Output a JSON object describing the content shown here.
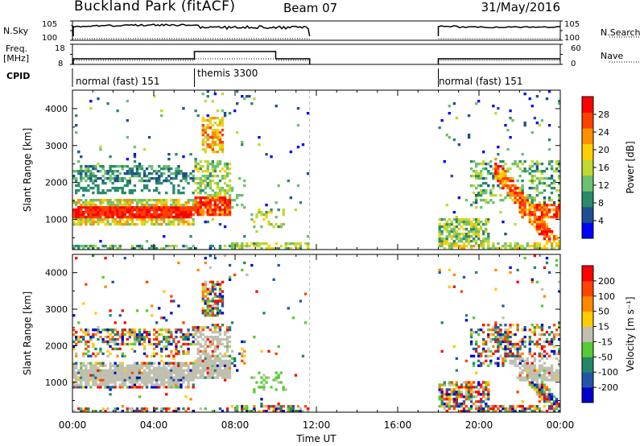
{
  "header": {
    "title": "Buckland Park (fitACF)",
    "beam": "Beam 07",
    "date": "31/May/2016"
  },
  "top_panels": {
    "nsky_label": "N.Sky",
    "nsearch_label": "N.Search",
    "freq_label_1": "Freq.",
    "freq_label_2": "[MHz]",
    "nave_label": "Nave",
    "cpid_label": "CPID",
    "left_ticks_noise": [
      "10^5",
      "10^0"
    ],
    "right_ticks_noise": [
      "10^5",
      "10^0"
    ],
    "left_ticks_freq": [
      "18",
      "8"
    ],
    "right_ticks_nave": [
      "60",
      "0"
    ],
    "modes": [
      "normal (fast) 151",
      "themis 3300",
      "normal (fast) 151"
    ]
  },
  "colors": {
    "power_scale": [
      "#0000ff",
      "#1f4f8f",
      "#2a8a6a",
      "#6cc070",
      "#c0d830",
      "#ffd000",
      "#ff9000",
      "#ff4000",
      "#ff0000"
    ],
    "velocity_scale": [
      "#0000cc",
      "#2255aa",
      "#228866",
      "#55cc33",
      "#c0c0b0",
      "#ffcc00",
      "#ff8800",
      "#ff4400",
      "#ff0000"
    ]
  },
  "chart_data": [
    {
      "type": "heatmap",
      "name": "power",
      "ylabel": "Slant Range [km]",
      "colorbar_label": "Power [dB]",
      "colorbar_ticks": [
        "28",
        "24",
        "20",
        "16",
        "12",
        "8",
        "4"
      ],
      "yticks": [
        "1000",
        "2000",
        "3000",
        "4000"
      ],
      "ylim": [
        180,
        4500
      ],
      "xlim": [
        0,
        24
      ],
      "data_gaps_ut_hours": [
        [
          11.67,
          18.0
        ]
      ],
      "features": [
        {
          "range_km": 1150,
          "ut_from": 0,
          "ut_to": 6,
          "level_db": 26
        },
        {
          "range_km": 2250,
          "ut_from": 0,
          "ut_to": 6,
          "level_db": 10
        },
        {
          "range_km": 1300,
          "ut_from": 6,
          "ut_to": 7.8,
          "level_db": 22
        },
        {
          "range_km": 3300,
          "ut_from": 6.5,
          "ut_to": 7.5,
          "level_db": 20
        },
        {
          "range_km": 1100,
          "ut_from": 21.5,
          "ut_to": 24,
          "level_db": 24
        }
      ]
    },
    {
      "type": "heatmap",
      "name": "velocity",
      "xlabel": "Time UT",
      "ylabel": "Slant Range [km]",
      "colorbar_label": "Velocity [m s^-1]",
      "colorbar_ticks": [
        "200",
        "100",
        "50",
        "15",
        "-15",
        "-50",
        "-100",
        "-200"
      ],
      "yticks": [
        "1000",
        "2000",
        "3000",
        "4000"
      ],
      "xticks": [
        "00:00",
        "04:00",
        "08:00",
        "12:00",
        "16:00",
        "20:00",
        "00:00"
      ],
      "ylim": [
        180,
        4500
      ],
      "xlim": [
        0,
        24
      ]
    }
  ]
}
